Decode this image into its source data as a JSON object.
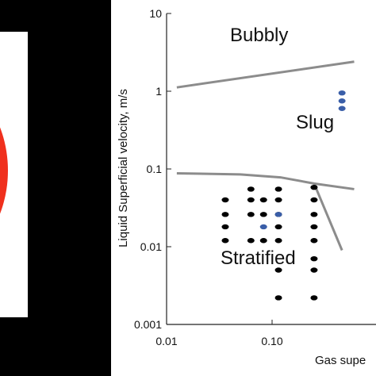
{
  "left_panel": {
    "colors": {
      "frame": "#ffffff",
      "disc": "#f0301d",
      "background": "#000000"
    }
  },
  "chart_data": {
    "type": "scatter",
    "xlabel": "Gas supe",
    "ylabel": "Liquid Superficial velocity, m/s",
    "x_scale": "log",
    "y_scale": "log",
    "xlim": [
      0.01,
      0.6
    ],
    "ylim": [
      0.001,
      10
    ],
    "x_ticks": [
      "0.01",
      "0.10"
    ],
    "y_ticks": [
      "0.001",
      "0.01",
      "0.1",
      "1",
      "10"
    ],
    "region_labels": [
      "Bubbly",
      "Slug",
      "Stratified"
    ],
    "colors": {
      "black_points": "#000000",
      "blue_points": "#3a5ea8",
      "boundary": "#8c8c8c"
    },
    "boundaries": [
      {
        "x": [
          0.0125,
          0.6
        ],
        "y": [
          1.12,
          2.4
        ]
      },
      {
        "x": [
          0.0125,
          0.05,
          0.12,
          0.25,
          0.6
        ],
        "y": [
          0.088,
          0.085,
          0.078,
          0.065,
          0.055
        ]
      },
      {
        "x": [
          0.25,
          0.46
        ],
        "y": [
          0.065,
          0.009
        ]
      }
    ],
    "series": [
      {
        "color": "black",
        "points": [
          [
            0.036,
            0.04
          ],
          [
            0.036,
            0.026
          ],
          [
            0.036,
            0.018
          ],
          [
            0.036,
            0.012
          ],
          [
            0.063,
            0.055
          ],
          [
            0.063,
            0.04
          ],
          [
            0.063,
            0.026
          ],
          [
            0.063,
            0.012
          ],
          [
            0.083,
            0.04
          ],
          [
            0.083,
            0.026
          ],
          [
            0.083,
            0.012
          ],
          [
            0.115,
            0.055
          ],
          [
            0.115,
            0.04
          ],
          [
            0.115,
            0.026
          ],
          [
            0.115,
            0.018
          ],
          [
            0.115,
            0.012
          ],
          [
            0.115,
            0.005
          ],
          [
            0.115,
            0.0022
          ],
          [
            0.25,
            0.058
          ],
          [
            0.25,
            0.04
          ],
          [
            0.25,
            0.026
          ],
          [
            0.25,
            0.018
          ],
          [
            0.25,
            0.012
          ],
          [
            0.25,
            0.007
          ],
          [
            0.25,
            0.005
          ],
          [
            0.25,
            0.0022
          ]
        ]
      },
      {
        "color": "blue",
        "points": [
          [
            0.083,
            0.018
          ],
          [
            0.115,
            0.026
          ],
          [
            0.46,
            0.95
          ],
          [
            0.46,
            0.75
          ],
          [
            0.46,
            0.6
          ]
        ]
      }
    ]
  }
}
